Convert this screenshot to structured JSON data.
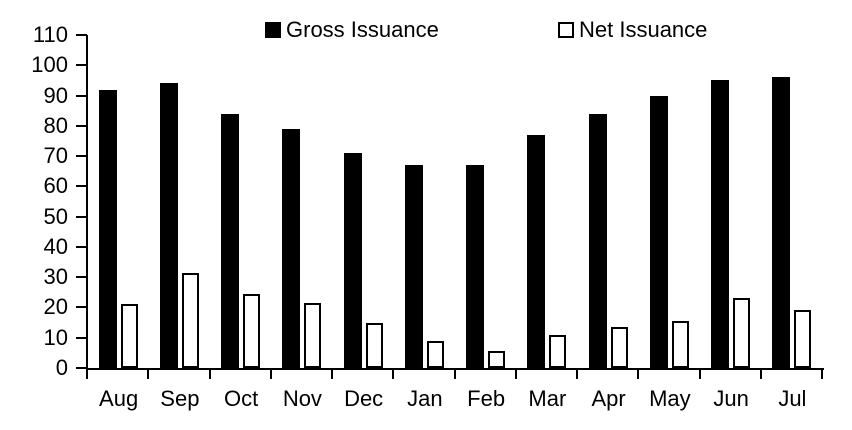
{
  "colors": {
    "foreground": "#000000",
    "background": "#ffffff",
    "gross_fill": "#000000",
    "net_fill": "#ffffff",
    "net_stroke": "#000000"
  },
  "legend": {
    "gross_label": "Gross Issuance",
    "net_label": "Net Issuance"
  },
  "chart_data": {
    "type": "bar",
    "title": "",
    "xlabel": "",
    "ylabel": "",
    "categories": [
      "Aug",
      "Sep",
      "Oct",
      "Nov",
      "Dec",
      "Jan",
      "Feb",
      "Mar",
      "Apr",
      "May",
      "Jun",
      "Jul"
    ],
    "series": [
      {
        "name": "Gross Issuance",
        "style": "filled",
        "fill": "#000000",
        "stroke": "#000000",
        "values": [
          92,
          94,
          84,
          79,
          71,
          67,
          67,
          77,
          84,
          90,
          95,
          96
        ]
      },
      {
        "name": "Net Issuance",
        "style": "hollow",
        "fill": "#ffffff",
        "stroke": "#000000",
        "values": [
          21,
          31.5,
          24.5,
          21.5,
          15,
          9,
          5.5,
          11,
          13.5,
          15.5,
          23,
          19
        ]
      }
    ],
    "ylim": [
      0,
      110
    ],
    "y_ticks": [
      "0",
      "10",
      "20",
      "30",
      "40",
      "50",
      "60",
      "70",
      "80",
      "90",
      "100",
      "110"
    ],
    "grid": false,
    "legend_position": "top"
  }
}
